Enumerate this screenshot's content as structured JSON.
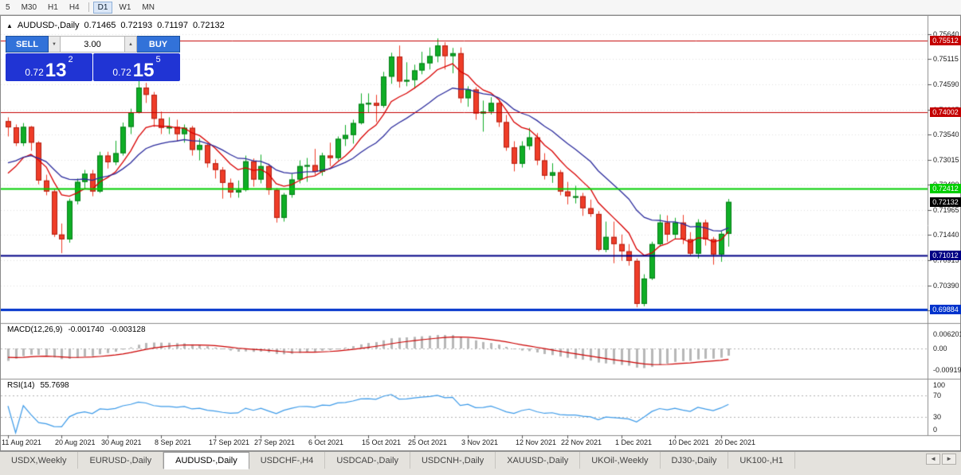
{
  "toolbar": {
    "items": [
      {
        "label": "5"
      },
      {
        "label": "M30"
      },
      {
        "label": "H1"
      },
      {
        "label": "H4"
      },
      {
        "label": "D1",
        "active": true,
        "sep_before": true
      },
      {
        "label": "W1"
      },
      {
        "label": "MN"
      }
    ]
  },
  "chart_header": {
    "marker_icon": "▲",
    "symbol": "AUDUSD-,Daily",
    "open": "0.71465",
    "high": "0.72193",
    "low": "0.71197",
    "close": "0.72132"
  },
  "trade_panel": {
    "sell_label": "SELL",
    "buy_label": "BUY",
    "volume": "3.00",
    "decrease_icon": "▼",
    "increase_icon": "▲",
    "bid": {
      "prefix": "0.72",
      "big": "13",
      "sup": "2"
    },
    "ask": {
      "prefix": "0.72",
      "big": "15",
      "sup": "5"
    }
  },
  "price_axis": {
    "ticks": [
      "0.75640",
      "0.75115",
      "0.74590",
      "0.74065",
      "0.73540",
      "0.73015",
      "0.72490",
      "0.71965",
      "0.71440",
      "0.70915",
      "0.70390",
      "0.69865"
    ]
  },
  "levels": [
    {
      "label": "0.75512",
      "price": 0.75512,
      "color": "#c40000",
      "width": 1
    },
    {
      "label": "0.74002",
      "price": 0.74002,
      "color": "#c40000",
      "width": 1
    },
    {
      "label": "0.72412",
      "price": 0.72412,
      "color": "#00ce00",
      "width": 2
    },
    {
      "label": "0.71012",
      "price": 0.71012,
      "color": "#000085",
      "width": 2
    },
    {
      "label": "0.69884",
      "price": 0.69884,
      "color": "#0033cc",
      "width": 3
    }
  ],
  "price_marker": {
    "label": "0.72132",
    "price": 0.72132,
    "color": "#000000"
  },
  "macd_panel": {
    "title": "MACD(12,26,9)",
    "value_main": "-0.001740",
    "value_signal": "-0.003128",
    "axis": [
      "0.006201",
      "0.00",
      "-0.00919"
    ]
  },
  "rsi_panel": {
    "title": "RSI(14)",
    "value": "55.7698",
    "axis": [
      "100",
      "70",
      "30",
      "0"
    ]
  },
  "date_axis": {
    "ticks": [
      {
        "i": 0,
        "label": "11 Aug 2021"
      },
      {
        "i": 7,
        "label": "20 Aug 2021"
      },
      {
        "i": 13,
        "label": "30 Aug 2021"
      },
      {
        "i": 20,
        "label": "8 Sep 2021"
      },
      {
        "i": 27,
        "label": "17 Sep 2021"
      },
      {
        "i": 33,
        "label": "27 Sep 2021"
      },
      {
        "i": 40,
        "label": "6 Oct 2021"
      },
      {
        "i": 47,
        "label": "15 Oct 2021"
      },
      {
        "i": 53,
        "label": "25 Oct 2021"
      },
      {
        "i": 60,
        "label": "3 Nov 2021"
      },
      {
        "i": 67,
        "label": "12 Nov 2021"
      },
      {
        "i": 73,
        "label": "22 Nov 2021"
      },
      {
        "i": 80,
        "label": "1 Dec 2021"
      },
      {
        "i": 87,
        "label": "10 Dec 2021"
      },
      {
        "i": 93,
        "label": "20 Dec 2021"
      }
    ]
  },
  "tabs": {
    "items": [
      {
        "label": "USDX,Weekly"
      },
      {
        "label": "EURUSD-,Daily"
      },
      {
        "label": "AUDUSD-,Daily",
        "active": true
      },
      {
        "label": "USDCHF-,H4"
      },
      {
        "label": "USDCAD-,Daily"
      },
      {
        "label": "USDCNH-,Daily"
      },
      {
        "label": "XAUUSD-,Daily"
      },
      {
        "label": "UKOil-,Weekly"
      },
      {
        "label": "DJ30-,Daily"
      },
      {
        "label": "UK100-,H1"
      }
    ],
    "scroll_left": "◄",
    "scroll_right": "►"
  },
  "chart_data": {
    "type": "candlestick",
    "symbol": "AUDUSD-",
    "timeframe": "Daily",
    "ylim": [
      0.6965,
      0.7577
    ],
    "colors": {
      "bull": "#0fae26",
      "bull_border": "#067d18",
      "bear": "#ef3d28",
      "bear_border": "#b22014",
      "ma_fast": "#d90000",
      "ma_slow": "#2b2b9d",
      "macd_hist": "#b8b8b8",
      "macd_signal": "#cc0000",
      "rsi": "#3d9be9",
      "grid": "#e0e0e0",
      "btn_blue": "#3272d9",
      "price_panel_blue": "#2034d4"
    },
    "overlays": [
      {
        "name": "ma-fast",
        "type": "ema",
        "period": 8
      },
      {
        "name": "ma-slow",
        "type": "ema",
        "period": 18
      }
    ],
    "indicators": [
      {
        "name": "MACD",
        "params": [
          12,
          26,
          9
        ],
        "last_main": -0.00174,
        "last_signal": -0.003128
      },
      {
        "name": "RSI",
        "params": [
          14
        ],
        "last": 55.7698
      }
    ],
    "candles": [
      [
        0.7382,
        0.739,
        0.735,
        0.7369
      ],
      [
        0.7369,
        0.7375,
        0.733,
        0.7336
      ],
      [
        0.7336,
        0.7378,
        0.733,
        0.737
      ],
      [
        0.737,
        0.7372,
        0.732,
        0.7337
      ],
      [
        0.7337,
        0.734,
        0.725,
        0.7258
      ],
      [
        0.7258,
        0.727,
        0.7227,
        0.7235
      ],
      [
        0.7235,
        0.724,
        0.714,
        0.7145
      ],
      [
        0.7145,
        0.7168,
        0.7106,
        0.7135
      ],
      [
        0.7135,
        0.722,
        0.7128,
        0.7215
      ],
      [
        0.7215,
        0.7262,
        0.7208,
        0.7255
      ],
      [
        0.7255,
        0.728,
        0.724,
        0.7272
      ],
      [
        0.7272,
        0.728,
        0.7225,
        0.7235
      ],
      [
        0.7235,
        0.7318,
        0.7232,
        0.731
      ],
      [
        0.731,
        0.7318,
        0.7283,
        0.7296
      ],
      [
        0.7296,
        0.7341,
        0.729,
        0.7315
      ],
      [
        0.7315,
        0.7379,
        0.731,
        0.737
      ],
      [
        0.737,
        0.7408,
        0.7355,
        0.74
      ],
      [
        0.74,
        0.7478,
        0.7398,
        0.7452
      ],
      [
        0.7452,
        0.7462,
        0.742,
        0.7437
      ],
      [
        0.7437,
        0.7443,
        0.737,
        0.7387
      ],
      [
        0.7387,
        0.7402,
        0.7355,
        0.7368
      ],
      [
        0.7368,
        0.739,
        0.7355,
        0.737
      ],
      [
        0.737,
        0.7385,
        0.734,
        0.7355
      ],
      [
        0.7355,
        0.7375,
        0.7337,
        0.7368
      ],
      [
        0.7368,
        0.7372,
        0.731,
        0.7322
      ],
      [
        0.7322,
        0.7346,
        0.73,
        0.7332
      ],
      [
        0.7332,
        0.7336,
        0.7285,
        0.7294
      ],
      [
        0.7294,
        0.7302,
        0.7262,
        0.728
      ],
      [
        0.728,
        0.7286,
        0.722,
        0.7253
      ],
      [
        0.7253,
        0.7262,
        0.7222,
        0.7233
      ],
      [
        0.7233,
        0.7258,
        0.7222,
        0.7238
      ],
      [
        0.7238,
        0.731,
        0.7235,
        0.7298
      ],
      [
        0.7298,
        0.7304,
        0.7245,
        0.726
      ],
      [
        0.726,
        0.7312,
        0.7252,
        0.7288
      ],
      [
        0.7288,
        0.7293,
        0.7228,
        0.7238
      ],
      [
        0.7238,
        0.7242,
        0.717,
        0.718
      ],
      [
        0.718,
        0.7232,
        0.7172,
        0.7228
      ],
      [
        0.7228,
        0.7272,
        0.7222,
        0.726
      ],
      [
        0.726,
        0.73,
        0.7252,
        0.7288
      ],
      [
        0.7288,
        0.7305,
        0.7255,
        0.729
      ],
      [
        0.729,
        0.7324,
        0.727,
        0.7276
      ],
      [
        0.7276,
        0.7316,
        0.7268,
        0.731
      ],
      [
        0.731,
        0.7337,
        0.7288,
        0.7305
      ],
      [
        0.7305,
        0.735,
        0.73,
        0.7345
      ],
      [
        0.7345,
        0.7374,
        0.733,
        0.7353
      ],
      [
        0.7353,
        0.7385,
        0.7335,
        0.7378
      ],
      [
        0.7378,
        0.744,
        0.7375,
        0.7418
      ],
      [
        0.7418,
        0.744,
        0.74,
        0.742
      ],
      [
        0.742,
        0.7437,
        0.738,
        0.7414
      ],
      [
        0.7414,
        0.7485,
        0.741,
        0.7475
      ],
      [
        0.7475,
        0.7525,
        0.746,
        0.7517
      ],
      [
        0.7517,
        0.754,
        0.7452,
        0.7465
      ],
      [
        0.7465,
        0.7505,
        0.7455,
        0.7468
      ],
      [
        0.7468,
        0.75,
        0.745,
        0.7488
      ],
      [
        0.7488,
        0.7527,
        0.748,
        0.7503
      ],
      [
        0.7503,
        0.7536,
        0.749,
        0.7518
      ],
      [
        0.7518,
        0.7555,
        0.7505,
        0.754
      ],
      [
        0.754,
        0.7547,
        0.749,
        0.7518
      ],
      [
        0.7518,
        0.7535,
        0.7482,
        0.7524
      ],
      [
        0.7524,
        0.7536,
        0.742,
        0.743
      ],
      [
        0.743,
        0.7455,
        0.7412,
        0.7448
      ],
      [
        0.7448,
        0.7453,
        0.7385,
        0.7398
      ],
      [
        0.7398,
        0.7425,
        0.736,
        0.7402
      ],
      [
        0.7402,
        0.7432,
        0.7396,
        0.742
      ],
      [
        0.742,
        0.7428,
        0.737,
        0.738
      ],
      [
        0.738,
        0.7395,
        0.732,
        0.7327
      ],
      [
        0.7327,
        0.734,
        0.7277,
        0.7293
      ],
      [
        0.7293,
        0.734,
        0.7285,
        0.733
      ],
      [
        0.733,
        0.7368,
        0.7322,
        0.7348
      ],
      [
        0.7348,
        0.7357,
        0.729,
        0.73
      ],
      [
        0.73,
        0.7315,
        0.726,
        0.7268
      ],
      [
        0.7268,
        0.7294,
        0.7253,
        0.7275
      ],
      [
        0.7275,
        0.728,
        0.7227,
        0.7235
      ],
      [
        0.7235,
        0.7255,
        0.7208,
        0.7225
      ],
      [
        0.7225,
        0.7247,
        0.721,
        0.7225
      ],
      [
        0.7225,
        0.7232,
        0.7184,
        0.72
      ],
      [
        0.72,
        0.7218,
        0.7182,
        0.7188
      ],
      [
        0.7188,
        0.7194,
        0.711,
        0.7113
      ],
      [
        0.7113,
        0.7172,
        0.7108,
        0.714
      ],
      [
        0.714,
        0.7172,
        0.7085,
        0.7125
      ],
      [
        0.7125,
        0.7145,
        0.709,
        0.711
      ],
      [
        0.711,
        0.7125,
        0.708,
        0.709
      ],
      [
        0.709,
        0.7095,
        0.6993,
        0.7
      ],
      [
        0.7,
        0.7062,
        0.6995,
        0.7053
      ],
      [
        0.7053,
        0.713,
        0.705,
        0.7125
      ],
      [
        0.7125,
        0.7187,
        0.712,
        0.717
      ],
      [
        0.717,
        0.7185,
        0.713,
        0.7145
      ],
      [
        0.7145,
        0.718,
        0.7135,
        0.717
      ],
      [
        0.717,
        0.7186,
        0.7125,
        0.7135
      ],
      [
        0.7135,
        0.715,
        0.71,
        0.7105
      ],
      [
        0.7105,
        0.7177,
        0.7095,
        0.717
      ],
      [
        0.717,
        0.7176,
        0.7122,
        0.7135
      ],
      [
        0.7135,
        0.714,
        0.7082,
        0.7103
      ],
      [
        0.7103,
        0.7152,
        0.7088,
        0.71465
      ],
      [
        0.71465,
        0.72193,
        0.71197,
        0.72132
      ]
    ]
  }
}
